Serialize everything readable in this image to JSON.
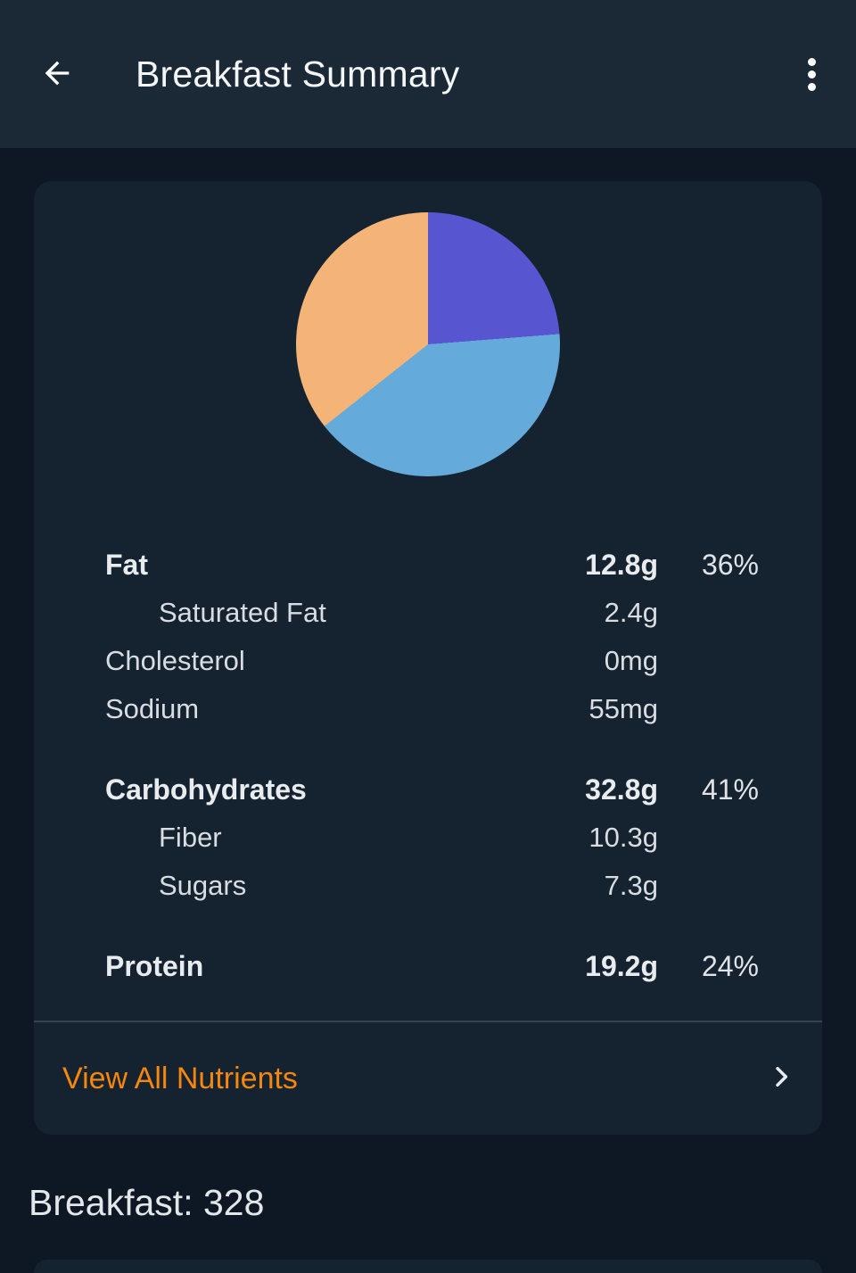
{
  "app_bar": {
    "title": "Breakfast Summary",
    "back_icon": "arrow-left",
    "menu_icon": "kebab-vertical"
  },
  "colors": {
    "page_bg": "#0E1724",
    "app_bar_bg": "#1B2836",
    "card_bg": "#15222F",
    "fat": "#F4B377",
    "carbohydrates": "#64ABDC",
    "protein": "#5756D0",
    "link_accent": "#F5860F"
  },
  "chart_data": {
    "type": "pie",
    "title": "",
    "legend_position": "none",
    "start_angle_deg": 0,
    "direction": "clockwise",
    "slices": [
      {
        "label": "Protein",
        "grams": 19.2,
        "percent": 24,
        "color": "#5756D0"
      },
      {
        "label": "Carbohydrates",
        "grams": 32.8,
        "percent": 41,
        "color": "#64ABDC"
      },
      {
        "label": "Fat",
        "grams": 12.8,
        "percent": 36,
        "color": "#F4B377"
      }
    ]
  },
  "nutrients": {
    "sections": [
      {
        "main": {
          "label": "Fat",
          "value": "12.8g",
          "percent": "36%",
          "color": "#F4B377"
        },
        "children": [
          {
            "label": "Saturated Fat",
            "value": "2.4g",
            "indent": true
          },
          {
            "label": "Cholesterol",
            "value": "0mg",
            "indent": false
          },
          {
            "label": "Sodium",
            "value": "55mg",
            "indent": false
          }
        ]
      },
      {
        "main": {
          "label": "Carbohydrates",
          "value": "32.8g",
          "percent": "41%",
          "color": "#64ABDC"
        },
        "children": [
          {
            "label": "Fiber",
            "value": "10.3g",
            "indent": true
          },
          {
            "label": "Sugars",
            "value": "7.3g",
            "indent": true
          }
        ]
      },
      {
        "main": {
          "label": "Protein",
          "value": "19.2g",
          "percent": "24%",
          "color": "#5756D0"
        },
        "children": []
      }
    ]
  },
  "footer": {
    "view_all_label": "View All Nutrients",
    "chevron_icon": "chevron-right"
  },
  "summary": {
    "text": "Breakfast: 328"
  }
}
